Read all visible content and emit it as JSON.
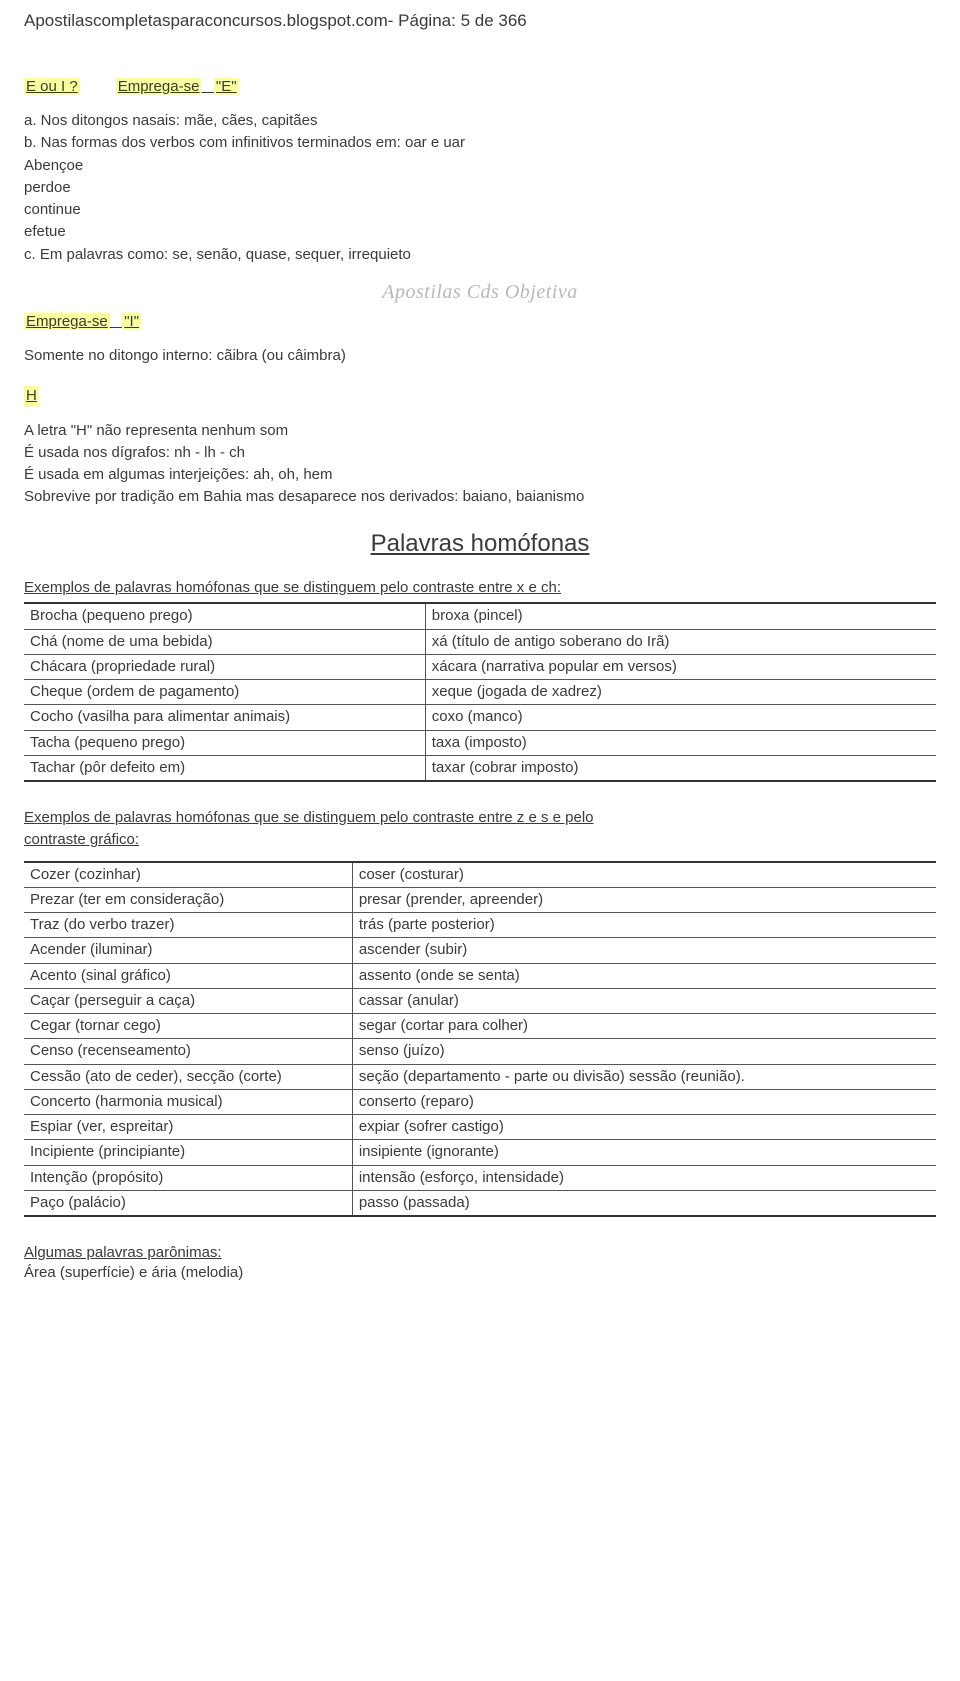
{
  "header": "Apostilascompletasparaconcursos.blogspot.com- Página: 5 de 366",
  "section_e": {
    "q": "E ou I ?",
    "emp": "Emprega-se",
    "letter": "\"E\"",
    "a": "a. Nos ditongos nasais: mãe, cães, capitães",
    "b": "b. Nas formas dos verbos com infinitivos terminados em: oar e uar",
    "b_list": [
      "Abençoe",
      "perdoe",
      "continue",
      "efetue"
    ],
    "c": "c. Em palavras como: se, senão, quase, sequer, irrequieto"
  },
  "watermark": "Apostilas Cds Objetiva",
  "section_i": {
    "emp": "Emprega-se",
    "letter": "\"I\"",
    "line": "Somente no ditongo interno: cãibra (ou câimbra)"
  },
  "section_h": {
    "letter": "H",
    "lines": [
      "A letra \"H\" não representa nenhum som",
      "É usada nos dígrafos: nh - lh - ch",
      "É usada em algumas interjeições: ah, oh, hem",
      "Sobrevive por tradição em Bahia mas desaparece nos derivados: baiano, baianismo"
    ]
  },
  "title": "Palavras homófonas",
  "example1": {
    "intro_u": "Exemplos de palavras homófonas que se distinguem pelo contraste entre ",
    "x": "x",
    "mid": " e ",
    "ch": "ch",
    "end": ":",
    "rows": [
      [
        "Brocha (pequeno prego)",
        "broxa (pincel)"
      ],
      [
        "Chá (nome de uma bebida)",
        "xá (título de antigo soberano do Irã)"
      ],
      [
        "Chácara (propriedade rural)",
        "xácara (narrativa popular em versos)"
      ],
      [
        "Cheque (ordem de pagamento)",
        "xeque (jogada de xadrez)"
      ],
      [
        "Cocho (vasilha para alimentar animais)",
        "coxo (manco)"
      ],
      [
        "Tacha (pequeno prego)",
        "taxa (imposto)"
      ],
      [
        "Tachar (pôr defeito em)",
        "taxar (cobrar imposto)"
      ]
    ]
  },
  "example2": {
    "intro1": "Exemplos de palavras homófonas que se distinguem pelo contraste entre ",
    "z": "z",
    "mid": " e  ",
    "s": "s",
    "intro2": " e pelo",
    "line2": "contraste gráfico:",
    "rows": [
      [
        "Cozer (cozinhar)",
        "coser (costurar)"
      ],
      [
        "Prezar (ter em consideração)",
        "presar (prender, apreender)"
      ],
      [
        "Traz (do verbo trazer)",
        "trás (parte posterior)"
      ],
      [
        "Acender (iluminar)",
        "ascender (subir)"
      ],
      [
        "Acento (sinal gráfico)",
        "assento (onde se senta)"
      ],
      [
        "Caçar (perseguir a caça)",
        "cassar (anular)"
      ],
      [
        "Cegar (tornar cego)",
        "segar (cortar para colher)"
      ],
      [
        "Censo (recenseamento)",
        "senso (juízo)"
      ],
      [
        "Cessão (ato de ceder), secção  (corte)",
        "seção (departamento - parte ou divisão) sessão (reunião)."
      ],
      [
        "Concerto (harmonia musical)",
        "conserto (reparo)"
      ],
      [
        "Espiar (ver, espreitar)",
        "expiar (sofrer castigo)"
      ],
      [
        "Incipiente (principiante)",
        "insipiente (ignorante)"
      ],
      [
        "Intenção (propósito)",
        "intensão (esforço, intensidade)"
      ],
      [
        "Paço (palácio)",
        "passo (passada)"
      ]
    ]
  },
  "footer": {
    "l1": "Algumas palavras parônimas:",
    "l2": "Área (superfície) e ária (melodia)"
  }
}
